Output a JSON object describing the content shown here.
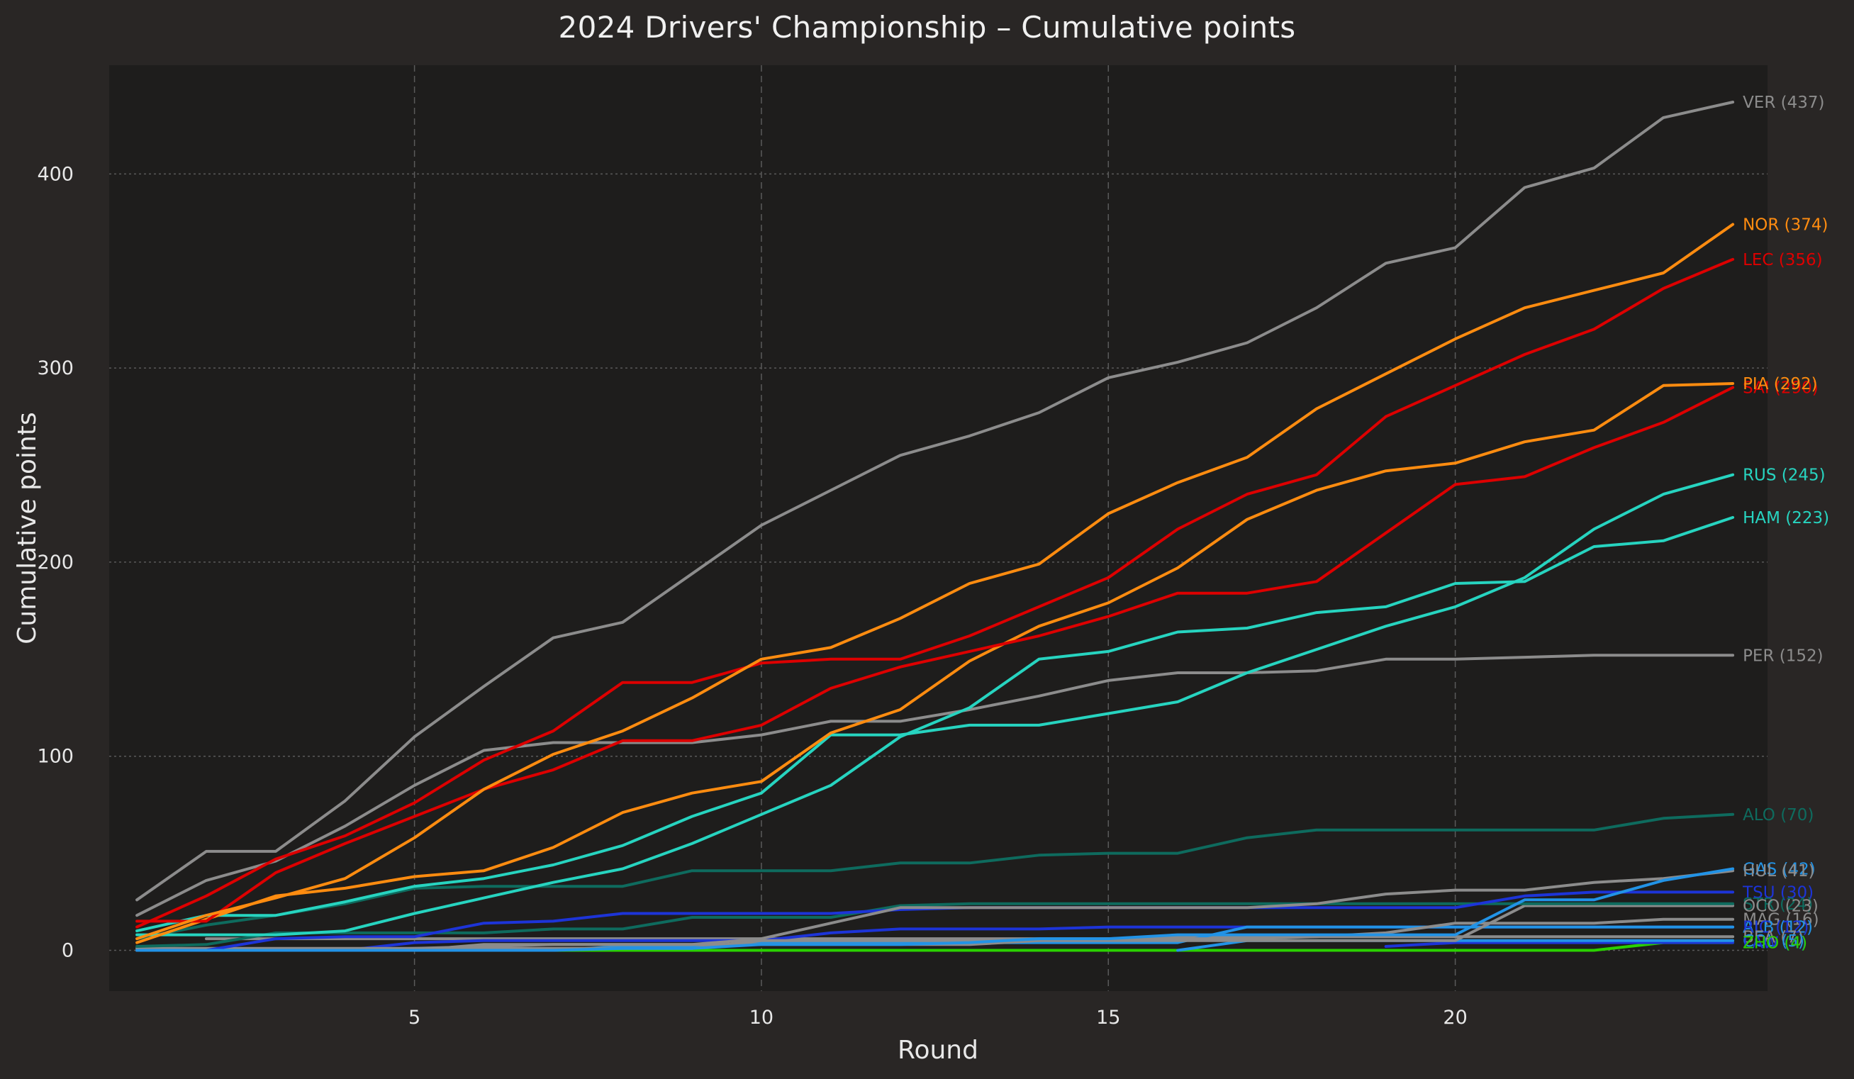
{
  "chart_data": {
    "type": "line",
    "title": "2024 Drivers' Championship – Cumulative points",
    "xlabel": "Round",
    "ylabel": "Cumulative points",
    "xlim": [
      0.6,
      24.5
    ],
    "ylim": [
      -21,
      456
    ],
    "xticks": [
      5,
      10,
      15,
      20
    ],
    "yticks": [
      0,
      100,
      200,
      300,
      400
    ],
    "grid": true,
    "legend": "none (labels at line ends)",
    "colors": {
      "background": "#292625",
      "plot_background": "#1e1d1c",
      "grid": "#5a5a5a"
    },
    "series": [
      {
        "name": "VER (437)",
        "color": "#8c8c8c",
        "x": [
          1,
          2,
          3,
          4,
          5,
          6,
          7,
          8,
          9,
          10,
          11,
          12,
          13,
          14,
          15,
          16,
          17,
          18,
          19,
          20,
          21,
          22,
          23,
          24
        ],
        "values": [
          26,
          51,
          51,
          77,
          110,
          136,
          161,
          169,
          194,
          219,
          237,
          255,
          265,
          277,
          295,
          303,
          313,
          331,
          354,
          362,
          393,
          403,
          429,
          437
        ]
      },
      {
        "name": "NOR (374)",
        "color": "#ff8c10",
        "x": [
          1,
          2,
          3,
          4,
          5,
          6,
          7,
          8,
          9,
          10,
          11,
          12,
          13,
          14,
          15,
          16,
          17,
          18,
          19,
          20,
          21,
          22,
          23,
          24
        ],
        "values": [
          6,
          18,
          27,
          37,
          58,
          83,
          101,
          113,
          130,
          150,
          156,
          171,
          189,
          199,
          225,
          241,
          254,
          279,
          297,
          315,
          331,
          340,
          349,
          374
        ]
      },
      {
        "name": "LEC (356)",
        "color": "#dd0000",
        "x": [
          1,
          2,
          3,
          4,
          5,
          6,
          7,
          8,
          9,
          10,
          11,
          12,
          13,
          14,
          15,
          16,
          17,
          18,
          19,
          20,
          21,
          22,
          23,
          24
        ],
        "values": [
          12,
          28,
          47,
          59,
          76,
          98,
          113,
          138,
          138,
          148,
          150,
          150,
          162,
          177,
          192,
          217,
          235,
          245,
          275,
          291,
          307,
          320,
          341,
          356
        ]
      },
      {
        "name": "SAI (290)",
        "color": "#dd0000",
        "x": [
          1,
          2,
          3,
          4,
          5,
          6,
          7,
          8,
          9,
          10,
          11,
          12,
          13,
          14,
          15,
          16,
          17,
          18,
          19,
          20,
          21,
          22,
          23,
          24
        ],
        "values": [
          15,
          15,
          40,
          55,
          69,
          83,
          93,
          108,
          108,
          116,
          135,
          146,
          154,
          162,
          172,
          184,
          184,
          190,
          215,
          240,
          244,
          259,
          272,
          290
        ]
      },
      {
        "name": "PIA (292)",
        "color": "#ff8c10",
        "x": [
          1,
          2,
          3,
          4,
          5,
          6,
          7,
          8,
          9,
          10,
          11,
          12,
          13,
          14,
          15,
          16,
          17,
          18,
          19,
          20,
          21,
          22,
          23,
          24
        ],
        "values": [
          4,
          16,
          28,
          32,
          38,
          41,
          53,
          71,
          81,
          87,
          112,
          124,
          149,
          167,
          179,
          197,
          222,
          237,
          247,
          251,
          262,
          268,
          291,
          292
        ]
      },
      {
        "name": "RUS (245)",
        "color": "#27d4c0",
        "x": [
          1,
          2,
          3,
          4,
          5,
          6,
          7,
          8,
          9,
          10,
          11,
          12,
          13,
          14,
          15,
          16,
          17,
          18,
          19,
          20,
          21,
          22,
          23,
          24
        ],
        "values": [
          10,
          18,
          18,
          25,
          33,
          37,
          44,
          54,
          69,
          81,
          111,
          111,
          116,
          116,
          122,
          128,
          143,
          155,
          167,
          177,
          192,
          217,
          235,
          245
        ]
      },
      {
        "name": "HAM (223)",
        "color": "#27d4c0",
        "x": [
          1,
          2,
          3,
          4,
          5,
          6,
          7,
          8,
          9,
          10,
          11,
          12,
          13,
          14,
          15,
          16,
          17,
          18,
          19,
          20,
          21,
          22,
          23,
          24
        ],
        "values": [
          8,
          8,
          8,
          10,
          19,
          27,
          35,
          42,
          55,
          70,
          85,
          110,
          125,
          150,
          154,
          164,
          166,
          174,
          177,
          189,
          190,
          208,
          211,
          223
        ]
      },
      {
        "name": "PER (152)",
        "color": "#8c8c8c",
        "x": [
          1,
          2,
          3,
          4,
          5,
          6,
          7,
          8,
          9,
          10,
          11,
          12,
          13,
          14,
          15,
          16,
          17,
          18,
          19,
          20,
          21,
          22,
          23,
          24
        ],
        "values": [
          18,
          36,
          46,
          64,
          85,
          103,
          107,
          107,
          107,
          111,
          118,
          118,
          124,
          131,
          139,
          143,
          143,
          144,
          150,
          150,
          151,
          152,
          152,
          152
        ]
      },
      {
        "name": "ALO (70)",
        "color": "#0e6b5e",
        "x": [
          1,
          2,
          3,
          4,
          5,
          6,
          7,
          8,
          9,
          10,
          11,
          12,
          13,
          14,
          15,
          16,
          17,
          18,
          19,
          20,
          21,
          22,
          23,
          24
        ],
        "values": [
          6,
          13,
          18,
          24,
          32,
          33,
          33,
          33,
          41,
          41,
          41,
          45,
          45,
          49,
          50,
          50,
          58,
          62,
          62,
          62,
          62,
          62,
          68,
          70
        ]
      },
      {
        "name": "GAS (42)",
        "color": "#2293e6",
        "x": [
          1,
          2,
          3,
          4,
          5,
          6,
          7,
          8,
          9,
          10,
          11,
          12,
          13,
          14,
          15,
          16,
          17,
          18,
          19,
          20,
          21,
          22,
          23,
          24
        ],
        "values": [
          0,
          0,
          0,
          0,
          0,
          0,
          0,
          1,
          1,
          3,
          3,
          3,
          4,
          6,
          6,
          8,
          8,
          8,
          8,
          8,
          26,
          26,
          36,
          42
        ]
      },
      {
        "name": "HUL (41)",
        "color": "#8c8c8c",
        "x": [
          1,
          2,
          3,
          4,
          5,
          6,
          7,
          8,
          9,
          10,
          11,
          12,
          13,
          14,
          15,
          16,
          17,
          18,
          19,
          20,
          21,
          22,
          23,
          24
        ],
        "values": [
          0,
          0,
          0,
          0,
          0,
          3,
          3,
          3,
          3,
          6,
          14,
          22,
          22,
          22,
          22,
          22,
          22,
          24,
          29,
          31,
          31,
          35,
          37,
          41
        ]
      },
      {
        "name": "TSU (30)",
        "color": "#1d34d8",
        "x": [
          1,
          2,
          3,
          4,
          5,
          6,
          7,
          8,
          9,
          10,
          11,
          12,
          13,
          14,
          15,
          16,
          17,
          18,
          19,
          20,
          21,
          22,
          23,
          24
        ],
        "values": [
          0,
          0,
          6,
          7,
          7,
          14,
          15,
          19,
          19,
          19,
          19,
          21,
          22,
          22,
          22,
          22,
          22,
          22,
          22,
          22,
          28,
          30,
          30,
          30
        ]
      },
      {
        "name": "STR (24)",
        "color": "#0e6b5e",
        "x": [
          1,
          2,
          3,
          4,
          5,
          6,
          7,
          8,
          9,
          10,
          11,
          12,
          13,
          14,
          15,
          16,
          17,
          18,
          19,
          20,
          21,
          22,
          23,
          24
        ],
        "values": [
          2,
          3,
          9,
          9,
          9,
          9,
          11,
          11,
          17,
          17,
          17,
          23,
          24,
          24,
          24,
          24,
          24,
          24,
          24,
          24,
          24,
          24,
          24,
          24
        ]
      },
      {
        "name": "OCO (23)",
        "color": "#8c8c8c",
        "x": [
          1,
          2,
          3,
          4,
          5,
          6,
          7,
          8,
          9,
          10,
          11,
          12,
          13,
          14,
          15,
          16,
          17,
          18,
          19,
          20,
          21,
          22,
          23,
          24
        ],
        "values": [
          0,
          0,
          0,
          0,
          1,
          2,
          3,
          3,
          3,
          3,
          3,
          3,
          3,
          5,
          5,
          5,
          5,
          5,
          5,
          5,
          23,
          23,
          23,
          23
        ]
      },
      {
        "name": "MAG (16)",
        "color": "#8c8c8c",
        "x": [
          1,
          2,
          3,
          4,
          5,
          6,
          7,
          8,
          9,
          10,
          11,
          12,
          13,
          14,
          15,
          16,
          17,
          18,
          19,
          20,
          21,
          22,
          23,
          24
        ],
        "values": [
          1,
          1,
          1,
          1,
          1,
          1,
          1,
          1,
          1,
          5,
          5,
          5,
          5,
          5,
          6,
          6,
          6,
          7,
          9,
          14,
          14,
          14,
          16,
          16
        ]
      },
      {
        "name": "ALB (12)",
        "color": "#2293e6",
        "x": [
          1,
          2,
          3,
          4,
          5,
          6,
          7,
          8,
          9,
          10,
          11,
          12,
          13,
          14,
          15,
          16,
          17,
          18,
          19,
          20,
          21,
          22,
          23,
          24
        ],
        "values": [
          0,
          0,
          0,
          0,
          0,
          0,
          0,
          2,
          2,
          4,
          4,
          4,
          4,
          4,
          4,
          4,
          12,
          12,
          12,
          12,
          12,
          12,
          12,
          12
        ]
      },
      {
        "name": "RIC (12)",
        "color": "#1d34d8",
        "x": [
          1,
          2,
          3,
          4,
          5,
          6,
          7,
          8,
          9,
          10,
          11,
          12,
          13,
          14,
          15,
          16,
          17,
          18,
          19,
          20,
          21,
          22,
          23,
          24
        ],
        "values": [
          0,
          0,
          0,
          0,
          4,
          5,
          5,
          5,
          5,
          5,
          9,
          11,
          11,
          11,
          12,
          12,
          12,
          12,
          12,
          12,
          12,
          12,
          12,
          12
        ]
      },
      {
        "name": "BEA (7)",
        "color": "#8c8c8c",
        "x": [
          2,
          3,
          4,
          5,
          6,
          7,
          8,
          9,
          10,
          11,
          12,
          13,
          14,
          15,
          16,
          17,
          18,
          19,
          20,
          21,
          22,
          23,
          24
        ],
        "values": [
          6,
          6,
          6,
          6,
          6,
          6,
          6,
          6,
          6,
          6,
          6,
          6,
          6,
          6,
          7,
          7,
          7,
          7,
          7,
          7,
          7,
          7,
          7
        ]
      },
      {
        "name": "COL (5)",
        "color": "#2293e6",
        "x": [
          16,
          17,
          18,
          19,
          20,
          21,
          22,
          23,
          24
        ],
        "values": [
          0,
          5,
          5,
          5,
          5,
          5,
          5,
          5,
          5
        ]
      },
      {
        "name": "LAW (4)",
        "color": "#1d34d8",
        "x": [
          19,
          20,
          21,
          22,
          23,
          24
        ],
        "values": [
          2,
          4,
          4,
          4,
          4,
          4
        ]
      },
      {
        "name": "ZHO (4)",
        "color": "#2ad100",
        "x": [
          1,
          2,
          3,
          4,
          5,
          6,
          7,
          8,
          9,
          10,
          11,
          12,
          13,
          14,
          15,
          16,
          17,
          18,
          19,
          20,
          21,
          22,
          23,
          24
        ],
        "values": [
          0,
          0,
          0,
          0,
          0,
          0,
          0,
          0,
          0,
          0,
          0,
          0,
          0,
          0,
          0,
          0,
          0,
          0,
          0,
          0,
          0,
          0,
          4,
          4
        ]
      }
    ]
  }
}
